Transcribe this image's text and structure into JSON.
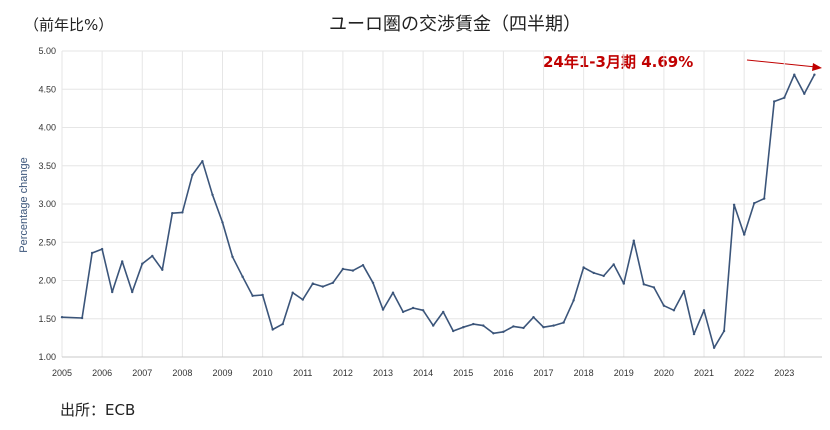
{
  "unit_label": "（前年比%）",
  "title": "ユーロ圏の交渉賃金（四半期）",
  "annotation": "24年1-3月期  4.69%",
  "source": "出所：ECB",
  "colors": {
    "line": "#3b557a",
    "accent": "#c00000",
    "grid": "#e6e6e6"
  },
  "chart_data": {
    "type": "line",
    "title": "ユーロ圏の交渉賃金（四半期）",
    "ylabel": "Percentage change",
    "xlabel": "",
    "ylim": [
      1.0,
      5.0
    ],
    "xlim": [
      2005,
      2023.94
    ],
    "y_ticks": [
      "1.00",
      "1.50",
      "2.00",
      "2.50",
      "3.00",
      "3.50",
      "4.00",
      "4.50",
      "5.00"
    ],
    "x_ticks": [
      "2005",
      "2006",
      "2007",
      "2008",
      "2009",
      "2010",
      "2011",
      "2012",
      "2013",
      "2014",
      "2015",
      "2016",
      "2017",
      "2018",
      "2019",
      "2020",
      "2021",
      "2022",
      "2023"
    ],
    "grid": true,
    "series": [
      {
        "x": [
          2005.0,
          2005.5,
          2005.75,
          2006.0,
          2006.25,
          2006.5,
          2006.75,
          2007.0,
          2007.25,
          2007.5,
          2007.75,
          2008.0,
          2008.25,
          2008.5,
          2008.75,
          2009.0,
          2009.25,
          2009.5,
          2009.75,
          2010.0,
          2010.25,
          2010.5,
          2010.75,
          2011.0,
          2011.25,
          2011.5,
          2011.75,
          2012.0,
          2012.25,
          2012.5,
          2012.75,
          2013.0,
          2013.25,
          2013.5,
          2013.75,
          2014.0,
          2014.25,
          2014.5,
          2014.75,
          2015.0,
          2015.25,
          2015.5,
          2015.75,
          2016.0,
          2016.25,
          2016.5,
          2016.75,
          2017.0,
          2017.25,
          2017.5,
          2017.75,
          2018.0,
          2018.25,
          2018.5,
          2018.75,
          2019.0,
          2019.25,
          2019.5,
          2019.75,
          2020.0,
          2020.25,
          2020.5,
          2020.75,
          2021.0,
          2021.25,
          2021.5,
          2021.75,
          2022.0,
          2022.25,
          2022.5,
          2022.75,
          2023.0,
          2023.25,
          2023.5,
          2023.75
        ],
        "values": [
          1.52,
          1.51,
          2.36,
          2.41,
          1.85,
          2.25,
          1.85,
          2.22,
          2.32,
          2.14,
          2.88,
          2.89,
          3.38,
          3.56,
          3.12,
          2.76,
          2.31,
          2.05,
          1.8,
          1.81,
          1.36,
          1.43,
          1.84,
          1.75,
          1.96,
          1.92,
          1.97,
          2.15,
          2.13,
          2.2,
          1.97,
          1.62,
          1.84,
          1.59,
          1.64,
          1.61,
          1.41,
          1.59,
          1.34,
          1.39,
          1.43,
          1.41,
          1.31,
          1.33,
          1.4,
          1.38,
          1.52,
          1.39,
          1.41,
          1.45,
          1.74,
          2.17,
          2.1,
          2.06,
          2.21,
          1.96,
          2.52,
          1.95,
          1.91,
          1.67,
          1.61,
          1.86,
          1.3,
          1.61,
          1.12,
          1.34,
          2.99,
          2.6,
          3.01,
          3.07,
          4.34,
          4.39,
          4.69,
          4.44,
          4.69
        ]
      }
    ]
  }
}
